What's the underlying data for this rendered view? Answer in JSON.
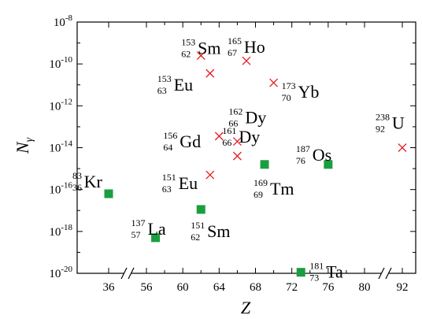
{
  "chart_data": {
    "type": "scatter",
    "xlabel": "Z",
    "ylabel": "N",
    "ylabel_sub": "γ",
    "y_scale": "log",
    "ylim_exp": [
      -20,
      -8
    ],
    "y_tick_exponents": [
      -20,
      -18,
      -16,
      -14,
      -12,
      -10,
      -8
    ],
    "y_tick_base": "10",
    "x_tick_labels": [
      "36",
      "56",
      "60",
      "64",
      "68",
      "72",
      "76",
      "80",
      "92"
    ],
    "x_breaks_after_tick": [
      0,
      7
    ],
    "grid": false,
    "colors": {
      "cross": "#e8191f",
      "square": "#1a9e3f"
    },
    "series": [
      {
        "marker": "cross",
        "points": [
          {
            "sym": "Sm",
            "a": "153",
            "z": "62",
            "x": 62,
            "y_exp": -9.6
          },
          {
            "sym": "Ho",
            "a": "165",
            "z": "67",
            "x": 67,
            "y_exp": -9.85
          },
          {
            "sym": "Eu",
            "a": "153",
            "z": "63",
            "x": 63,
            "y_exp": -10.45
          },
          {
            "sym": "Yb",
            "a": "173",
            "z": "70",
            "x": 70,
            "y_exp": -10.9
          },
          {
            "sym": "Gd",
            "a": "156",
            "z": "64",
            "x": 64,
            "y_exp": -13.45
          },
          {
            "sym": "Dy",
            "a": "162",
            "z": "66",
            "x": 66,
            "y_exp": -13.7
          },
          {
            "sym": "Dy",
            "a": "161",
            "z": "66",
            "x": 66,
            "y_exp": -14.4
          },
          {
            "sym": "Eu",
            "a": "151",
            "z": "63",
            "x": 63,
            "y_exp": -15.3
          },
          {
            "sym": "U",
            "a": "238",
            "z": "92",
            "x": 92,
            "y_exp": -14.0
          }
        ]
      },
      {
        "marker": "square",
        "points": [
          {
            "sym": "Kr",
            "a": "83",
            "z": "36",
            "x": 36,
            "y_exp": -16.2
          },
          {
            "sym": "La",
            "a": "137",
            "z": "57",
            "x": 57,
            "y_exp": -18.3
          },
          {
            "sym": "Sm",
            "a": "151",
            "z": "62",
            "x": 62,
            "y_exp": -16.95
          },
          {
            "sym": "Tm",
            "a": "169",
            "z": "69",
            "x": 69,
            "y_exp": -14.8
          },
          {
            "sym": "Os",
            "a": "187",
            "z": "76",
            "x": 76,
            "y_exp": -14.8
          },
          {
            "sym": "Ta",
            "a": "181",
            "z": "73",
            "x": 73,
            "y_exp": -19.95
          }
        ]
      }
    ]
  }
}
